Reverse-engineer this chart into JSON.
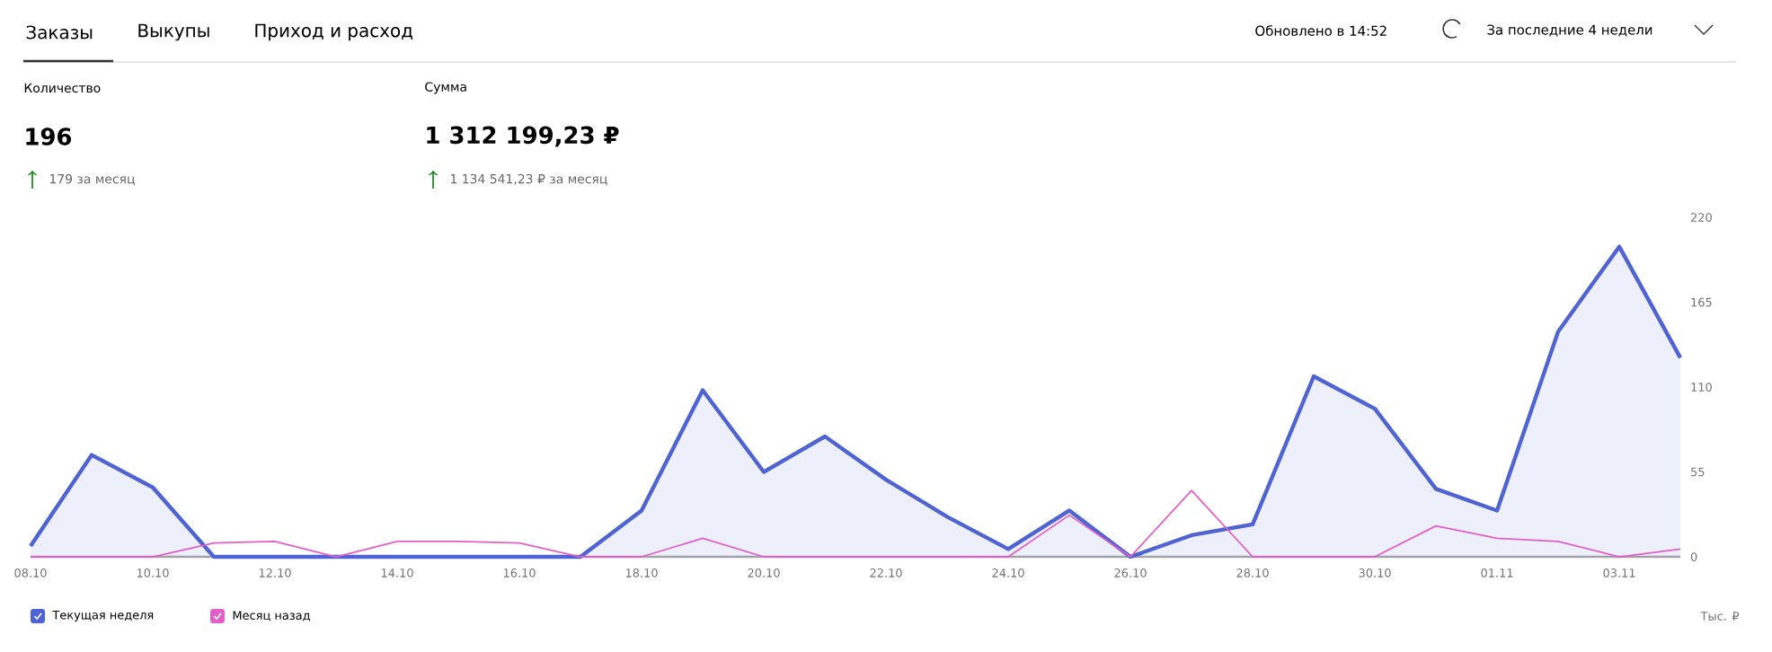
{
  "chart_data": {
    "type": "area",
    "ylabel": "Тыс. ₽",
    "annotations": [
      "Заказы",
      "Выкупы",
      "Приход и расход",
      "Обновлено в 14:52",
      "За последние 4 недели",
      "Количество",
      "196",
      "179 за месяц",
      "Сумма",
      "1 312 199,23 ₽",
      "1 134 541,23 ₽ за месяц"
    ],
    "categories": [
      "08.10",
      null,
      "10.10",
      null,
      "12.10",
      null,
      "14.10",
      null,
      "16.10",
      null,
      "18.10",
      null,
      "20.10",
      null,
      "22.10",
      null,
      "24.10",
      null,
      "26.10",
      null,
      "28.10",
      null,
      "30.10",
      null,
      "01.11",
      null,
      "03.11",
      null
    ],
    "ylim": [
      0,
      220
    ],
    "yticks": [
      0,
      55,
      110,
      165,
      220
    ],
    "grid": false,
    "legend": "bottom left",
    "marker": "none",
    "series": [
      {
        "name": "Текущая неделя",
        "color": "#4f63d2",
        "values": [
          7,
          66,
          45,
          0,
          0,
          0,
          0,
          0,
          0,
          0,
          30,
          108,
          55,
          78,
          50,
          26,
          5,
          30,
          0,
          14,
          21,
          117,
          96,
          44,
          30,
          146,
          201,
          129
        ]
      },
      {
        "name": "Месяц назад",
        "type": "line",
        "color": "#e060c8",
        "values": [
          0,
          0,
          0,
          9,
          10,
          0,
          10,
          10,
          9,
          0,
          0,
          12,
          0,
          0,
          0,
          0,
          0,
          27,
          0,
          43,
          0,
          0,
          0,
          20,
          12,
          10,
          0,
          5
        ]
      }
    ]
  }
}
